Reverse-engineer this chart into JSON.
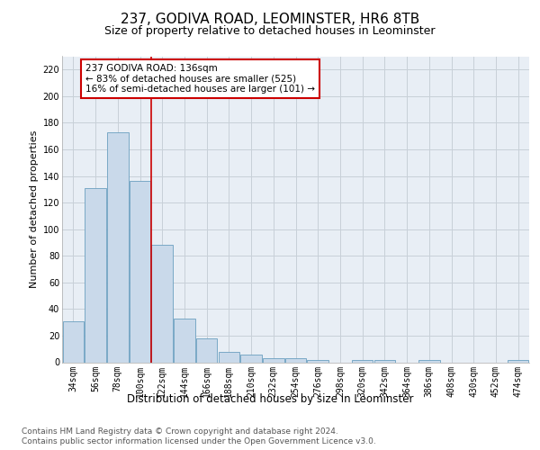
{
  "title1": "237, GODIVA ROAD, LEOMINSTER, HR6 8TB",
  "title2": "Size of property relative to detached houses in Leominster",
  "xlabel": "Distribution of detached houses by size in Leominster",
  "ylabel": "Number of detached properties",
  "categories": [
    "34sqm",
    "56sqm",
    "78sqm",
    "100sqm",
    "122sqm",
    "144sqm",
    "166sqm",
    "188sqm",
    "210sqm",
    "232sqm",
    "254sqm",
    "276sqm",
    "298sqm",
    "320sqm",
    "342sqm",
    "364sqm",
    "386sqm",
    "408sqm",
    "430sqm",
    "452sqm",
    "474sqm"
  ],
  "values": [
    31,
    131,
    173,
    136,
    88,
    33,
    18,
    8,
    6,
    3,
    3,
    2,
    0,
    2,
    2,
    0,
    2,
    0,
    0,
    0,
    2
  ],
  "bar_color": "#c9d9ea",
  "bar_edge_color": "#6b9fc0",
  "background_color": "#e8eef5",
  "grid_color": "#c8d0d8",
  "annotation_line1": "237 GODIVA ROAD: 136sqm",
  "annotation_line2": "← 83% of detached houses are smaller (525)",
  "annotation_line3": "16% of semi-detached houses are larger (101) →",
  "annotation_box_facecolor": "white",
  "annotation_box_edgecolor": "#cc0000",
  "vline_color": "#cc0000",
  "vline_x": 3.5,
  "ylim_max": 230,
  "yticks": [
    0,
    20,
    40,
    60,
    80,
    100,
    120,
    140,
    160,
    180,
    200,
    220
  ],
  "footer1": "Contains HM Land Registry data © Crown copyright and database right 2024.",
  "footer2": "Contains public sector information licensed under the Open Government Licence v3.0.",
  "title1_fontsize": 11,
  "title2_fontsize": 9,
  "xlabel_fontsize": 8.5,
  "ylabel_fontsize": 8,
  "tick_fontsize": 7,
  "ann_fontsize": 7.5,
  "footer_fontsize": 6.5
}
